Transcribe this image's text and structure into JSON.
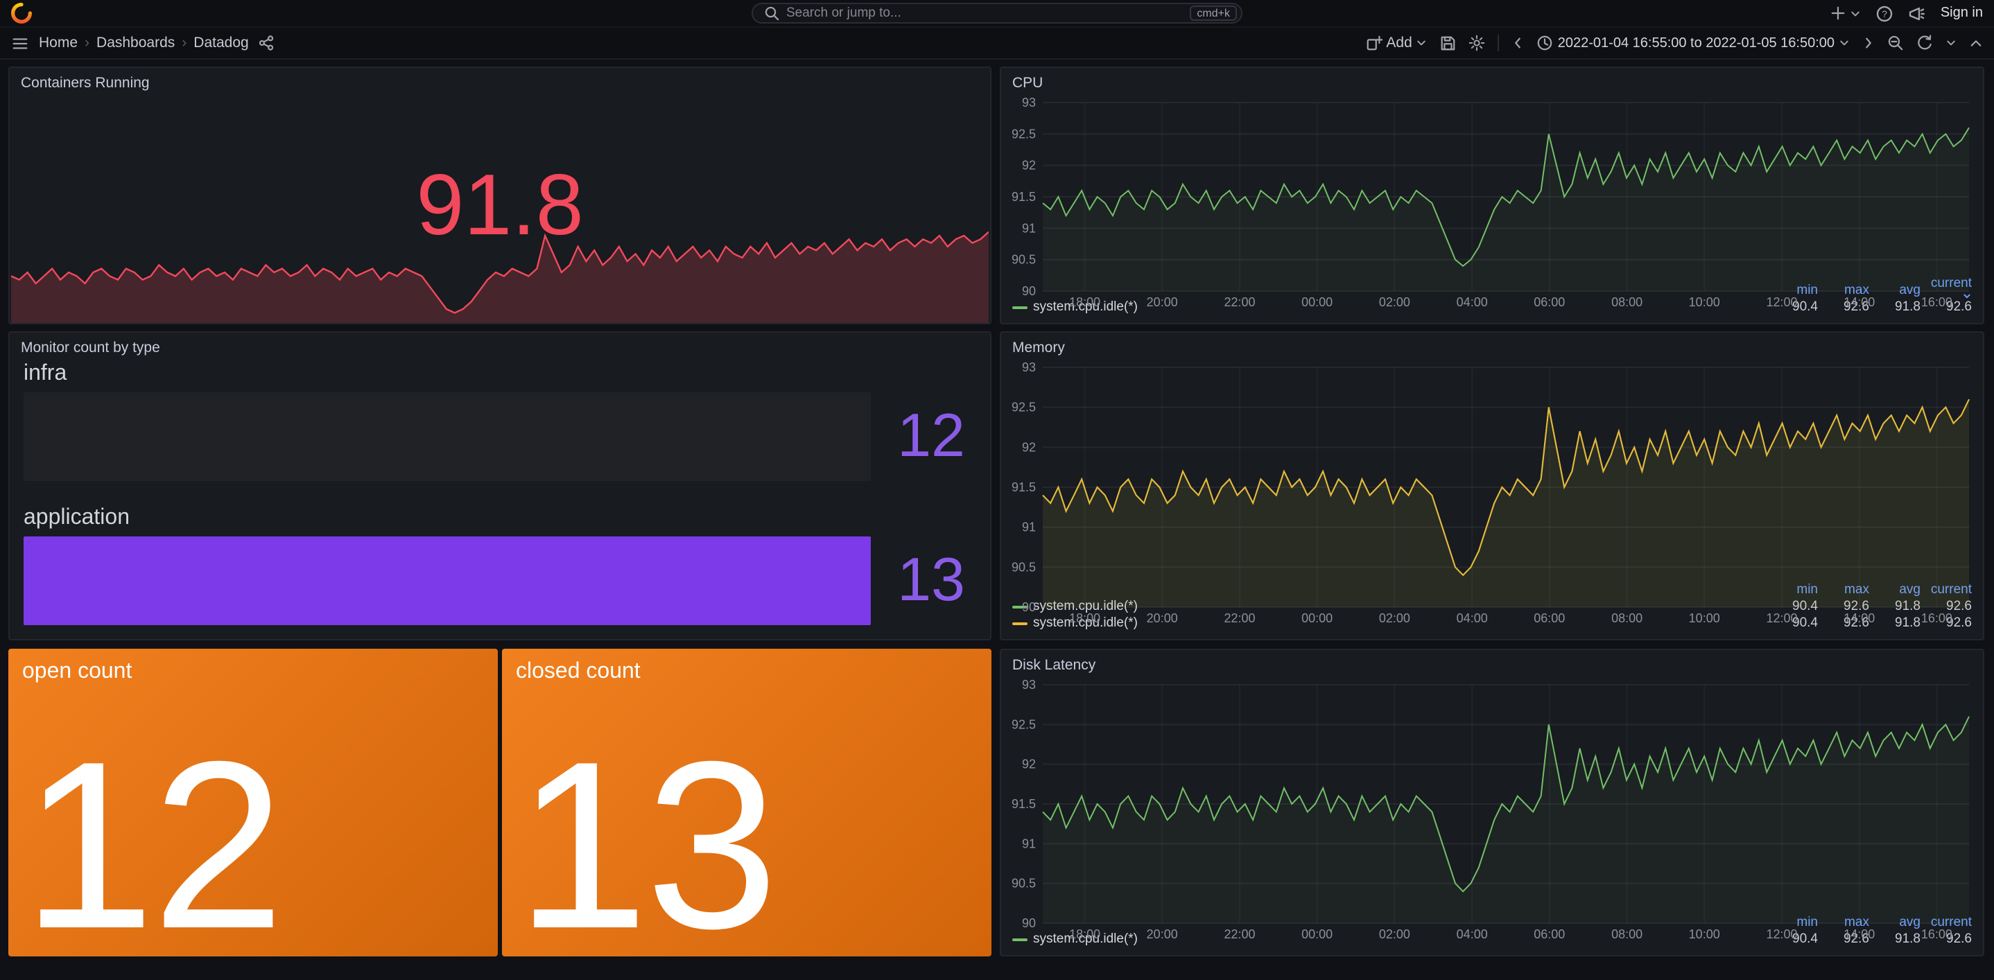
{
  "topbar": {
    "search_placeholder": "Search or jump to...",
    "shortcut_badge": "cmd+k",
    "sign_in_label": "Sign in"
  },
  "navbar": {
    "breadcrumbs": [
      "Home",
      "Dashboards",
      "Datadog"
    ],
    "add_label": "Add",
    "time_range": "2022-01-04 16:55:00 to 2022-01-05 16:50:00"
  },
  "legend_headers": [
    "min",
    "max",
    "avg",
    "current"
  ],
  "colors": {
    "red": "#F2495C",
    "green": "#73BF69",
    "yellow": "#EAB839",
    "purple_bar": "#7D3AE8",
    "purple_value": "#8A5CE6",
    "orange_from": "#F1801F",
    "orange_to": "#D2640A",
    "legend_header_blue": "#6E9FFF"
  },
  "chart_axes": {
    "total_minutes": 1435,
    "first_tick_minute": 65,
    "tick_step_minutes": 120
  },
  "series_values": [
    91.4,
    91.3,
    91.5,
    91.2,
    91.4,
    91.6,
    91.3,
    91.5,
    91.4,
    91.2,
    91.5,
    91.6,
    91.4,
    91.3,
    91.6,
    91.5,
    91.3,
    91.4,
    91.7,
    91.5,
    91.4,
    91.6,
    91.3,
    91.5,
    91.6,
    91.4,
    91.5,
    91.3,
    91.6,
    91.5,
    91.4,
    91.7,
    91.5,
    91.6,
    91.4,
    91.5,
    91.7,
    91.4,
    91.6,
    91.5,
    91.3,
    91.6,
    91.4,
    91.5,
    91.6,
    91.3,
    91.5,
    91.4,
    91.6,
    91.5,
    91.4,
    91.1,
    90.8,
    90.5,
    90.4,
    90.5,
    90.7,
    91.0,
    91.3,
    91.5,
    91.4,
    91.6,
    91.5,
    91.4,
    91.6,
    92.5,
    92.0,
    91.5,
    91.7,
    92.2,
    91.8,
    92.1,
    91.7,
    91.9,
    92.2,
    91.8,
    92.0,
    91.7,
    92.1,
    91.9,
    92.2,
    91.8,
    92.0,
    92.2,
    91.9,
    92.1,
    91.8,
    92.2,
    92.0,
    91.9,
    92.2,
    92.0,
    92.3,
    91.9,
    92.1,
    92.3,
    92.0,
    92.2,
    92.1,
    92.3,
    92.0,
    92.2,
    92.4,
    92.1,
    92.3,
    92.2,
    92.4,
    92.1,
    92.3,
    92.4,
    92.2,
    92.4,
    92.3,
    92.5,
    92.2,
    92.4,
    92.5,
    92.3,
    92.4,
    92.6
  ],
  "chart_data": [
    {
      "panel": "Containers Running",
      "type": "area",
      "color": "#F2495C",
      "stat": 91.8,
      "values_key": "series_values",
      "x_range": [
        "2022-01-04 16:55:00",
        "2022-01-05 16:50:00"
      ]
    },
    {
      "panel": "CPU",
      "type": "line",
      "values_key": "series_values",
      "sort_indicator": true,
      "x_range": [
        "2022-01-04 16:55:00",
        "2022-01-05 16:50:00"
      ],
      "xticks": [
        "18:00",
        "20:00",
        "22:00",
        "00:00",
        "02:00",
        "04:00",
        "06:00",
        "08:00",
        "10:00",
        "12:00",
        "14:00",
        "16:00"
      ],
      "ylim": [
        90,
        93
      ],
      "yticks": [
        93,
        92.5,
        92,
        91.5,
        91,
        90.5,
        90
      ],
      "series": [
        {
          "name": "system.cpu.idle(*)",
          "color": "#73BF69",
          "min": 90.4,
          "max": 92.6,
          "avg": 91.8,
          "current": 92.6
        }
      ]
    },
    {
      "panel": "Memory",
      "type": "line",
      "values_key": "series_values",
      "x_range": [
        "2022-01-04 16:55:00",
        "2022-01-05 16:50:00"
      ],
      "xticks": [
        "18:00",
        "20:00",
        "22:00",
        "00:00",
        "02:00",
        "04:00",
        "06:00",
        "08:00",
        "10:00",
        "12:00",
        "14:00",
        "16:00"
      ],
      "ylim": [
        90,
        93
      ],
      "yticks": [
        93,
        92.5,
        92,
        91.5,
        91,
        90.5,
        90
      ],
      "series": [
        {
          "name": "system.cpu.idle(*)",
          "color": "#73BF69",
          "min": 90.4,
          "max": 92.6,
          "avg": 91.8,
          "current": 92.6
        },
        {
          "name": "system.cpu.idle(*)",
          "color": "#EAB839",
          "min": 90.4,
          "max": 92.6,
          "avg": 91.8,
          "current": 92.6
        }
      ]
    },
    {
      "panel": "Disk Latency",
      "type": "line",
      "values_key": "series_values",
      "x_range": [
        "2022-01-04 16:55:00",
        "2022-01-05 16:50:00"
      ],
      "xticks": [
        "18:00",
        "20:00",
        "22:00",
        "00:00",
        "02:00",
        "04:00",
        "06:00",
        "08:00",
        "10:00",
        "12:00",
        "14:00",
        "16:00"
      ],
      "ylim": [
        90,
        93
      ],
      "yticks": [
        93,
        92.5,
        92,
        91.5,
        91,
        90.5,
        90
      ],
      "series": [
        {
          "name": "system.cpu.idle(*)",
          "color": "#73BF69",
          "min": 90.4,
          "max": 92.6,
          "avg": 91.8,
          "current": 92.6
        }
      ]
    },
    {
      "panel": "Monitor count by type",
      "type": "bar",
      "categories": [
        "infra",
        "application"
      ],
      "values": [
        12,
        13
      ],
      "bar_colors": [
        "#202226",
        "#7D3AE8"
      ],
      "value_color": "#8A5CE6"
    },
    {
      "panel": "open count",
      "type": "stat",
      "value": 12
    },
    {
      "panel": "closed count",
      "type": "stat",
      "value": 13
    }
  ]
}
